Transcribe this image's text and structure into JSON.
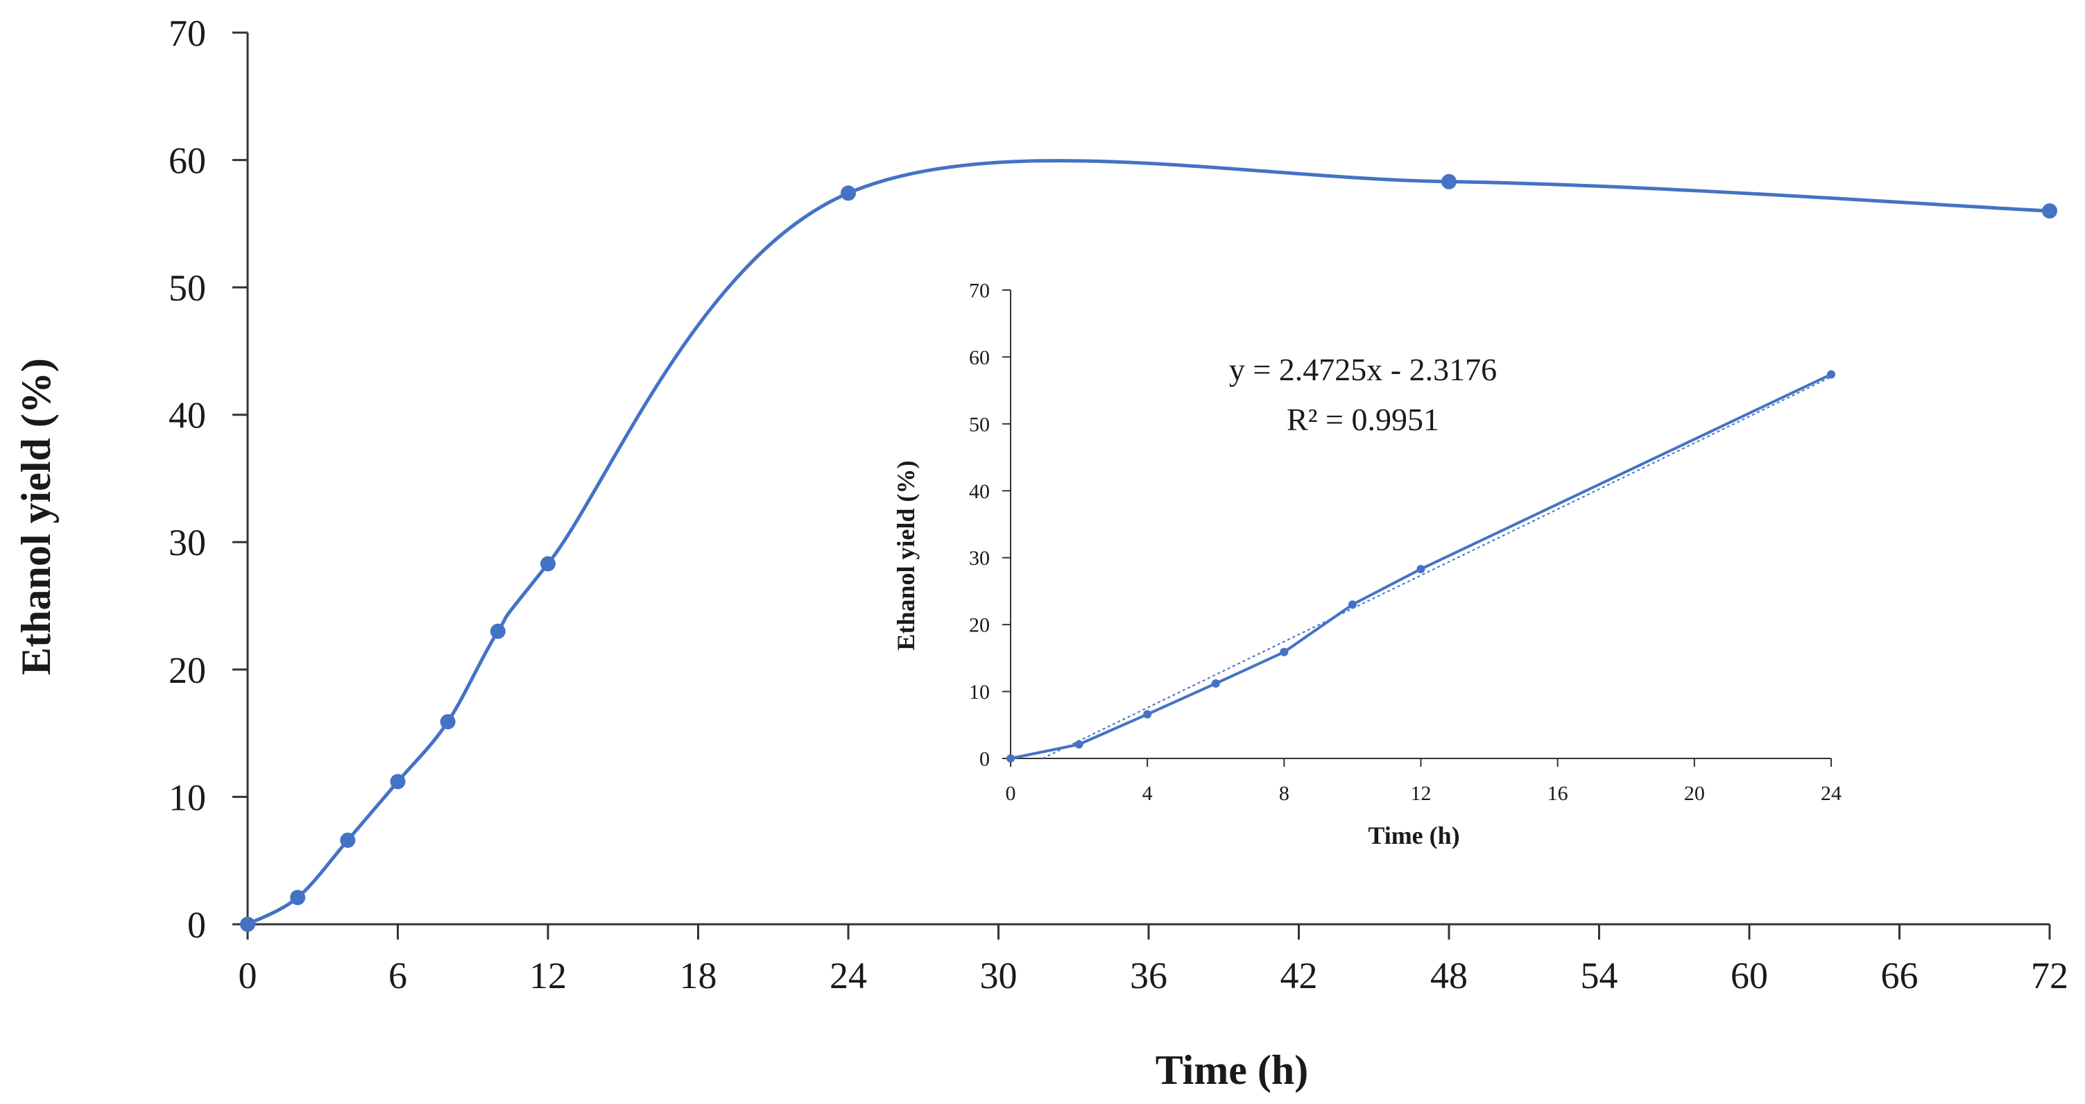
{
  "chart_data": [
    {
      "id": "main",
      "type": "line",
      "title": "",
      "xlabel": "Time (h)",
      "ylabel": "Ethanol yield (%)",
      "xlim": [
        0,
        72
      ],
      "ylim": [
        0,
        70
      ],
      "xticks": [
        0,
        6,
        12,
        18,
        24,
        30,
        36,
        42,
        48,
        54,
        60,
        66,
        72
      ],
      "yticks": [
        0,
        10,
        20,
        30,
        40,
        50,
        60,
        70
      ],
      "smooth": true,
      "color": "#4472C4",
      "series": [
        {
          "name": "Ethanol yield",
          "x": [
            0,
            2,
            4,
            6,
            8,
            10,
            12,
            24,
            48,
            72
          ],
          "y": [
            0,
            2.1,
            6.6,
            11.2,
            15.9,
            23.0,
            28.3,
            57.4,
            58.3,
            56.0
          ]
        }
      ]
    },
    {
      "id": "inset",
      "type": "line",
      "title": "",
      "xlabel": "Time (h)",
      "ylabel": "Ethanol yield (%)",
      "xlim": [
        0,
        24
      ],
      "ylim": [
        0,
        70
      ],
      "xticks": [
        0,
        4,
        8,
        12,
        16,
        20,
        24
      ],
      "yticks": [
        0,
        10,
        20,
        30,
        40,
        50,
        60,
        70
      ],
      "color": "#4472C4",
      "series": [
        {
          "name": "Ethanol yield",
          "x": [
            0,
            2,
            4,
            6,
            8,
            10,
            12,
            24
          ],
          "y": [
            0,
            2.1,
            6.6,
            11.2,
            15.9,
            23.0,
            28.3,
            57.4
          ]
        }
      ],
      "trendline": {
        "slope": 2.4725,
        "intercept": -2.3176,
        "equation": "y = 2.4725x - 2.3176",
        "r_squared": "R² = 0.9951"
      }
    }
  ]
}
